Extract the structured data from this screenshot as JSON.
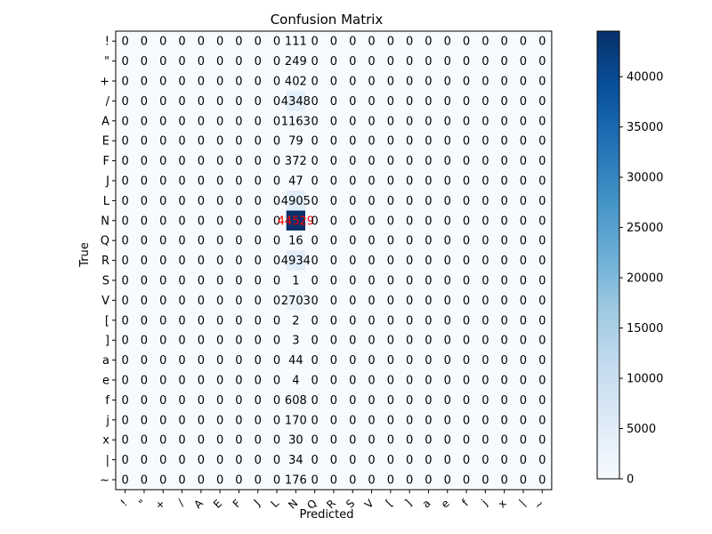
{
  "chart_data": {
    "type": "heatmap",
    "title": "Confusion Matrix",
    "xlabel": "Predicted",
    "ylabel": "True",
    "labels": [
      "!",
      "\"",
      "+",
      "/",
      "A",
      "E",
      "F",
      "J",
      "L",
      "N",
      "Q",
      "R",
      "S",
      "V",
      "[",
      "]",
      "a",
      "e",
      "f",
      "j",
      "x",
      "|",
      "~"
    ],
    "predicted_column": "N",
    "values_predicted_N": [
      111,
      249,
      402,
      4348,
      1163,
      79,
      372,
      47,
      4905,
      44529,
      16,
      4934,
      1,
      2703,
      2,
      3,
      44,
      4,
      608,
      170,
      30,
      34,
      176
    ],
    "other_cells_value": 0,
    "highlight_cell_text_color": "#ff0000",
    "colormap": "Blues",
    "colorbar": {
      "min": 0,
      "max": 44529,
      "ticks": [
        0,
        5000,
        10000,
        15000,
        20000,
        25000,
        30000,
        35000,
        40000
      ]
    }
  }
}
